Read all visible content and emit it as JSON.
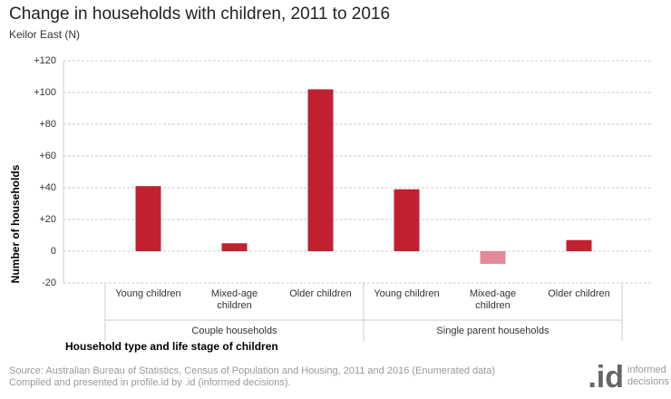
{
  "chart_data": {
    "type": "bar",
    "title": "Change in households with children, 2011 to 2016",
    "subtitle": "Keilor East (N)",
    "y_label": "Number of households",
    "x_label": "Household type and life stage of children",
    "groups": [
      {
        "name": "Couple households",
        "categories": [
          "Young children",
          "Mixed-age children",
          "Older children"
        ],
        "values": [
          41,
          5,
          102
        ]
      },
      {
        "name": "Single parent households",
        "categories": [
          "Young children",
          "Mixed-age children",
          "Older children"
        ],
        "values": [
          39,
          -8,
          7
        ]
      }
    ],
    "color": "#c0202f",
    "negative_color": "#e38a98",
    "ylim": [
      -20,
      120
    ],
    "yticks": [
      -20,
      0,
      {
        "value": 20,
        "label": "+20"
      },
      {
        "value": 40,
        "label": "+40"
      },
      {
        "value": 60,
        "label": "+60"
      },
      {
        "value": 80,
        "label": "+80"
      },
      {
        "value": 100,
        "label": "+100"
      },
      {
        "value": 120,
        "label": "+120"
      }
    ],
    "grid": true
  },
  "footer": {
    "source": "Source: Australian Bureau of Statistics, Census of Population and Housing, 2011 and 2016 (Enumerated data)",
    "compiled": "Compiled and presented in profile.id by .id (informed decisions).",
    "logo_mark": ".id",
    "logo_text": [
      "informed",
      "decisions"
    ]
  }
}
